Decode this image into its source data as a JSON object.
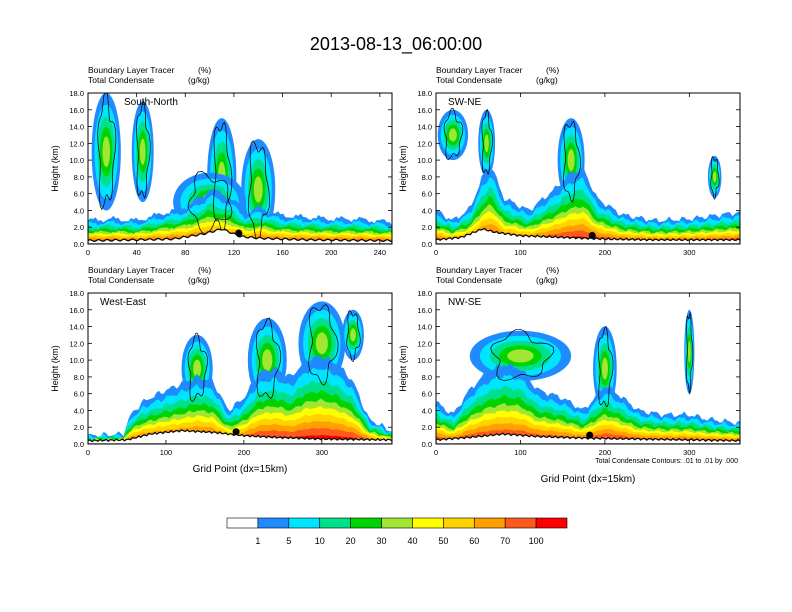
{
  "title": "2013-08-13_06:00:00",
  "colorbar": {
    "labels": [
      "1",
      "5",
      "10",
      "20",
      "30",
      "40",
      "50",
      "60",
      "70",
      "100"
    ],
    "colors": [
      "#ffffff",
      "#1e8cff",
      "#00e5ff",
      "#00e08a",
      "#00d400",
      "#a0e632",
      "#ffff00",
      "#ffd200",
      "#ffa000",
      "#ff5a1e",
      "#ff0000"
    ]
  },
  "footnote": "Total Condensate Contours: .01 to .01 by .000",
  "xlabel": "Grid Point (dx=15km)",
  "chart_data": [
    {
      "type": "heatmap",
      "name": "South-North",
      "subtitle_left": [
        "Boundary Layer Tracer",
        "Total Condensate"
      ],
      "subtitle_units": [
        "(%)",
        "(g/kg)"
      ],
      "ylabel": "Height (km)",
      "xlabel": "",
      "ylim": [
        0,
        18
      ],
      "yticks": [
        "0.0",
        "2.0",
        "4.0",
        "6.0",
        "8.0",
        "10.0",
        "12.0",
        "14.0",
        "16.0",
        "18.0"
      ],
      "xlim": [
        0,
        250
      ],
      "xticks": [
        0,
        40,
        80,
        120,
        160,
        200,
        240
      ],
      "xtick_labels": [
        "0",
        "40",
        "80",
        "120",
        "160",
        "200",
        "240"
      ],
      "pbl_top": [
        [
          0,
          2.8
        ],
        [
          20,
          3.0
        ],
        [
          40,
          2.8
        ],
        [
          60,
          3.6
        ],
        [
          80,
          4.4
        ],
        [
          95,
          5.8
        ],
        [
          100,
          6.6
        ],
        [
          110,
          6.0
        ],
        [
          120,
          5.2
        ],
        [
          130,
          3.6
        ],
        [
          140,
          4.4
        ],
        [
          150,
          3.8
        ],
        [
          160,
          3.4
        ],
        [
          180,
          3.2
        ],
        [
          200,
          3.0
        ],
        [
          220,
          3.0
        ],
        [
          250,
          2.6
        ]
      ],
      "blobs": [
        [
          15,
          11,
          12,
          7
        ],
        [
          45,
          11,
          9,
          6
        ],
        [
          110,
          8,
          12,
          7
        ],
        [
          140,
          6.5,
          14,
          6
        ],
        [
          100,
          5,
          30,
          3.5
        ]
      ],
      "terrain": [
        [
          0,
          0.4
        ],
        [
          40,
          0.5
        ],
        [
          70,
          0.6
        ],
        [
          95,
          1.2
        ],
        [
          110,
          1.8
        ],
        [
          125,
          0.9
        ],
        [
          140,
          0.7
        ],
        [
          180,
          0.5
        ],
        [
          250,
          0.4
        ]
      ],
      "marker_x": 124
    },
    {
      "type": "heatmap",
      "name": "SW-NE",
      "subtitle_left": [
        "Boundary Layer Tracer",
        "Total Condensate"
      ],
      "subtitle_units": [
        "(%)",
        "(g/kg)"
      ],
      "ylabel": "Height (km)",
      "xlabel": "",
      "ylim": [
        0,
        18
      ],
      "yticks": [
        "0.0",
        "2.0",
        "4.0",
        "6.0",
        "8.0",
        "10.0",
        "12.0",
        "14.0",
        "16.0",
        "18.0"
      ],
      "xlim": [
        0,
        360
      ],
      "xticks": [
        0,
        100,
        200,
        300
      ],
      "xtick_labels": [
        "0",
        "100",
        "200",
        "300"
      ],
      "pbl_top": [
        [
          0,
          4.0
        ],
        [
          20,
          2.8
        ],
        [
          40,
          4.2
        ],
        [
          55,
          8.0
        ],
        [
          65,
          9.5
        ],
        [
          80,
          5.5
        ],
        [
          110,
          4.0
        ],
        [
          140,
          6.5
        ],
        [
          160,
          8.5
        ],
        [
          175,
          9.0
        ],
        [
          190,
          5.5
        ],
        [
          220,
          3.5
        ],
        [
          260,
          2.8
        ],
        [
          300,
          3.0
        ],
        [
          330,
          3.4
        ],
        [
          360,
          3.8
        ]
      ],
      "blobs": [
        [
          20,
          13,
          18,
          3
        ],
        [
          60,
          12,
          10,
          4
        ],
        [
          160,
          10,
          16,
          5
        ],
        [
          330,
          8,
          8,
          2.5
        ]
      ],
      "terrain": [
        [
          0,
          0.5
        ],
        [
          30,
          0.8
        ],
        [
          55,
          1.8
        ],
        [
          70,
          1.4
        ],
        [
          100,
          1.0
        ],
        [
          150,
          0.8
        ],
        [
          200,
          0.6
        ],
        [
          260,
          0.5
        ],
        [
          360,
          0.5
        ]
      ],
      "marker_x": 185
    },
    {
      "type": "heatmap",
      "name": "West-East",
      "subtitle_left": [
        "Boundary Layer Tracer",
        "Total Condensate"
      ],
      "subtitle_units": [
        "(%)",
        "(g/kg)"
      ],
      "ylabel": "Height (km)",
      "xlabel": "Grid Point (dx=15km)",
      "ylim": [
        0,
        18
      ],
      "yticks": [
        "0.0",
        "2.0",
        "4.0",
        "6.0",
        "8.0",
        "10.0",
        "12.0",
        "14.0",
        "16.0",
        "18.0"
      ],
      "xlim": [
        0,
        390
      ],
      "xticks": [
        0,
        100,
        200,
        300
      ],
      "xtick_labels": [
        "0",
        "100",
        "200",
        "300"
      ],
      "pbl_top": [
        [
          0,
          1.0
        ],
        [
          45,
          1.2
        ],
        [
          55,
          3.5
        ],
        [
          70,
          5.0
        ],
        [
          90,
          6.0
        ],
        [
          110,
          6.8
        ],
        [
          140,
          8.0
        ],
        [
          160,
          7.5
        ],
        [
          180,
          4.0
        ],
        [
          200,
          5.5
        ],
        [
          220,
          8.5
        ],
        [
          240,
          9.0
        ],
        [
          260,
          8.0
        ],
        [
          280,
          10.0
        ],
        [
          300,
          10.5
        ],
        [
          320,
          9.5
        ],
        [
          340,
          7.5
        ],
        [
          360,
          3.0
        ],
        [
          390,
          1.5
        ]
      ],
      "blobs": [
        [
          140,
          9,
          20,
          4
        ],
        [
          230,
          10,
          25,
          5
        ],
        [
          300,
          12,
          30,
          5
        ],
        [
          340,
          13,
          14,
          3
        ]
      ],
      "terrain": [
        [
          0,
          0.4
        ],
        [
          50,
          0.5
        ],
        [
          80,
          1.2
        ],
        [
          120,
          1.6
        ],
        [
          160,
          1.4
        ],
        [
          200,
          1.0
        ],
        [
          240,
          0.8
        ],
        [
          300,
          0.6
        ],
        [
          390,
          0.5
        ]
      ],
      "marker_x": 190
    },
    {
      "type": "heatmap",
      "name": "NW-SE",
      "subtitle_left": [
        "Boundary Layer Tracer",
        "Total Condensate"
      ],
      "subtitle_units": [
        "(%)",
        "(g/kg)"
      ],
      "ylabel": "Height (km)",
      "xlabel": "Grid Point (dx=15km)",
      "ylim": [
        0,
        18
      ],
      "yticks": [
        "0.0",
        "2.0",
        "4.0",
        "6.0",
        "8.0",
        "10.0",
        "12.0",
        "14.0",
        "16.0",
        "18.0"
      ],
      "xlim": [
        0,
        360
      ],
      "xticks": [
        0,
        100,
        200,
        300
      ],
      "xtick_labels": [
        "0",
        "100",
        "200",
        "300"
      ],
      "pbl_top": [
        [
          0,
          5.0
        ],
        [
          20,
          3.5
        ],
        [
          40,
          6.5
        ],
        [
          60,
          8.5
        ],
        [
          80,
          9.5
        ],
        [
          100,
          9.0
        ],
        [
          120,
          6.5
        ],
        [
          150,
          5.5
        ],
        [
          175,
          4.0
        ],
        [
          200,
          7.0
        ],
        [
          215,
          6.0
        ],
        [
          240,
          4.0
        ],
        [
          270,
          3.5
        ],
        [
          300,
          3.5
        ],
        [
          320,
          3.0
        ],
        [
          360,
          2.5
        ]
      ],
      "blobs": [
        [
          100,
          10.5,
          60,
          3
        ],
        [
          200,
          9,
          14,
          5
        ],
        [
          300,
          11,
          6,
          5
        ]
      ],
      "terrain": [
        [
          0,
          0.5
        ],
        [
          40,
          0.8
        ],
        [
          80,
          1.2
        ],
        [
          120,
          0.9
        ],
        [
          180,
          0.7
        ],
        [
          240,
          0.6
        ],
        [
          300,
          0.5
        ],
        [
          360,
          0.4
        ]
      ],
      "marker_x": 182
    }
  ]
}
